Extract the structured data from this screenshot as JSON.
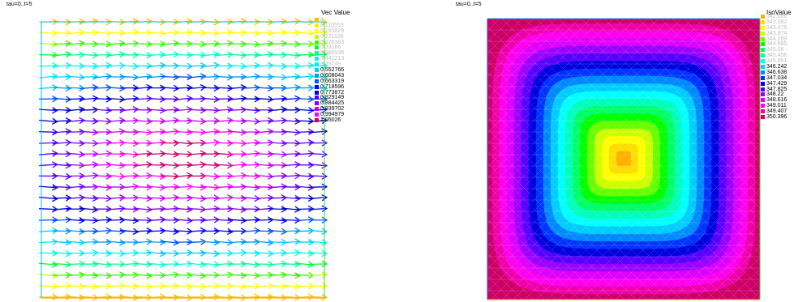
{
  "plots": [
    {
      "title": "tau=0..t=5",
      "legend_title": "Vec Value"
    },
    {
      "title": "tau=0..t=5",
      "legend_title": "IsoValue"
    }
  ],
  "chart_data": [
    {
      "type": "vector-field",
      "title": "tau=0..t=5",
      "legend_title": "Vec Value",
      "legend": [
        {
          "label": "0",
          "color": "#f2c200"
        },
        {
          "label": "0.110553",
          "color": "#ffee00"
        },
        {
          "label": "0.165829",
          "color": "#ffff00"
        },
        {
          "label": "0.221106",
          "color": "#bbff00"
        },
        {
          "label": "0.276383",
          "color": "#33ff00"
        },
        {
          "label": "0.33166",
          "color": "#00ff33"
        },
        {
          "label": "0.386936",
          "color": "#00ff99"
        },
        {
          "label": "0.442213",
          "color": "#00ffdd"
        },
        {
          "label": "0.49749",
          "color": "#00eeff"
        },
        {
          "label": "0.552766",
          "color": "#00ccff"
        },
        {
          "label": "0.608043",
          "color": "#0099ff"
        },
        {
          "label": "0.663319",
          "color": "#0055ff"
        },
        {
          "label": "0.718596",
          "color": "#0000ff"
        },
        {
          "label": "0.773872",
          "color": "#0000cc"
        },
        {
          "label": "0.829149",
          "color": "#5500ff"
        },
        {
          "label": "0.884425",
          "color": "#8800ff"
        },
        {
          "label": "0.939702",
          "color": "#cc00ff"
        },
        {
          "label": "0.994979",
          "color": "#ff00ff"
        },
        {
          "label": "1.05026",
          "color": "#cc0066"
        }
      ],
      "rows": 26,
      "cols": 21,
      "max_value": 1.05026,
      "domain": "unit square"
    },
    {
      "type": "heatmap",
      "title": "tau=0..t=5",
      "legend_title": "IsoValue",
      "levels": [
        {
          "label": "342.686",
          "color": "#ffb000"
        },
        {
          "label": "343.082",
          "color": "#ffdd00"
        },
        {
          "label": "343.478",
          "color": "#ffff00"
        },
        {
          "label": "343.874",
          "color": "#ccff00"
        },
        {
          "label": "344.269",
          "color": "#66ff00"
        },
        {
          "label": "344.665",
          "color": "#00ff00"
        },
        {
          "label": "345.06",
          "color": "#00ff66"
        },
        {
          "label": "345.456",
          "color": "#00ffbb"
        },
        {
          "label": "345.851",
          "color": "#00ffff"
        },
        {
          "label": "346.242",
          "color": "#00ccff"
        },
        {
          "label": "346.638",
          "color": "#0088ff"
        },
        {
          "label": "347.034",
          "color": "#0033ff"
        },
        {
          "label": "347.429",
          "color": "#0000dd"
        },
        {
          "label": "347.825",
          "color": "#5500ff"
        },
        {
          "label": "348.22",
          "color": "#9900ff"
        },
        {
          "label": "348.616",
          "color": "#dd00ff"
        },
        {
          "label": "349.011",
          "color": "#ff00ee"
        },
        {
          "label": "349.407",
          "color": "#ee00aa"
        },
        {
          "label": "350.396",
          "color": "#cc0066"
        }
      ]
    }
  ]
}
